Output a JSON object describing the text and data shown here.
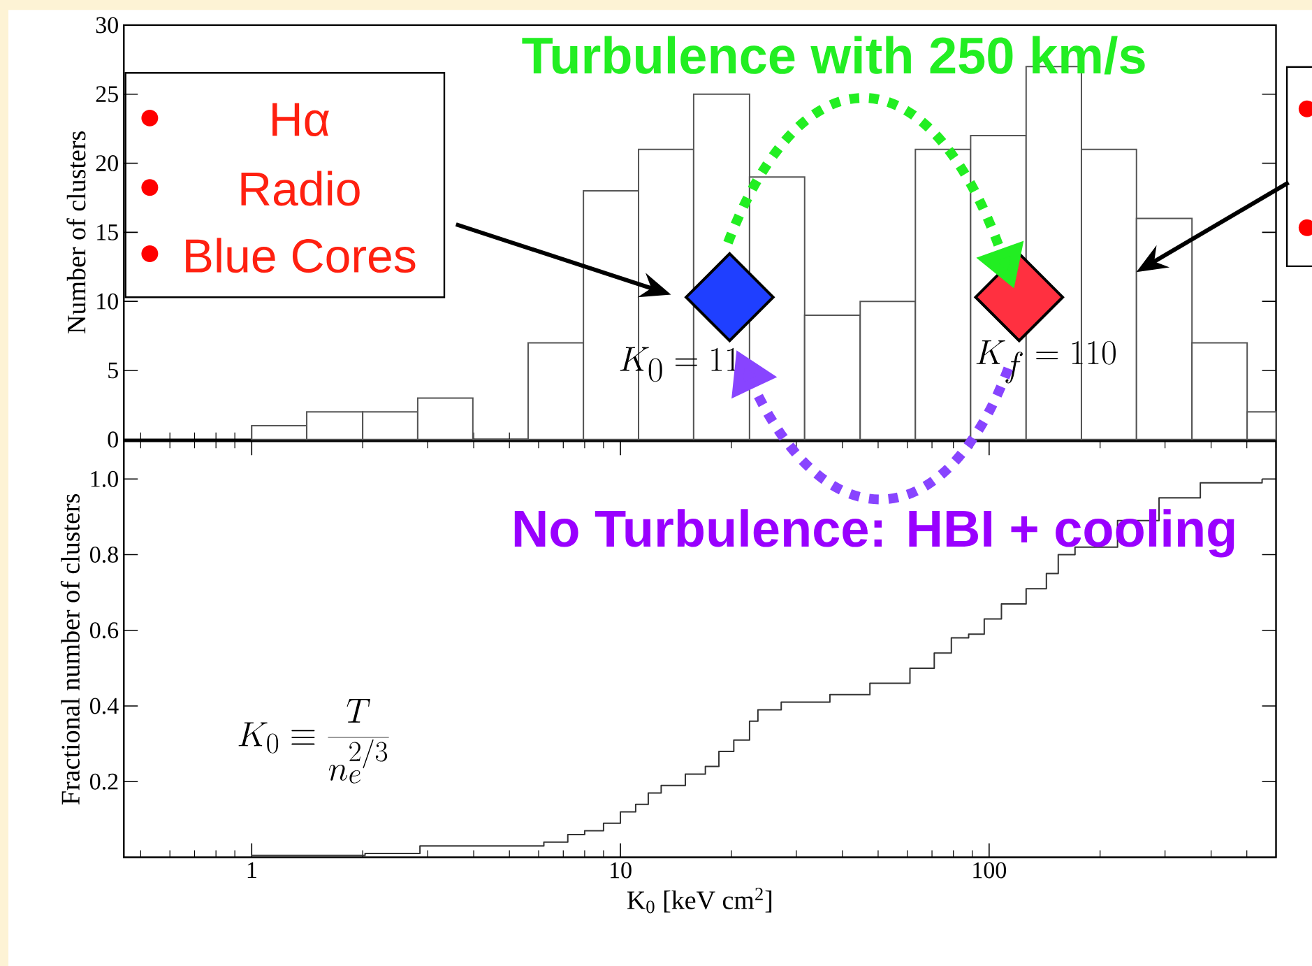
{
  "chart_data": [
    {
      "type": "histogram",
      "ylabel": "Number of clusters",
      "bins": [
        1,
        1.41,
        2,
        2.82,
        3.98,
        5.62,
        7.94,
        11.2,
        15.8,
        22.4,
        31.6,
        44.7,
        63.1,
        89.1,
        126,
        178,
        251,
        355,
        501,
        600
      ],
      "series": [
        {
          "type": "histogram",
          "color": "#555555",
          "values": [
            1,
            2,
            2,
            3,
            0,
            7,
            18,
            21,
            25,
            19,
            9,
            10,
            21,
            22,
            27,
            21,
            16,
            7,
            2
          ]
        }
      ],
      "xlim": [
        0.45,
        600
      ],
      "xticks": [
        1,
        10,
        100
      ],
      "log": "x",
      "ylim": [
        0,
        30
      ],
      "yticks": [
        0,
        5,
        10,
        15,
        20,
        25,
        30
      ],
      "tick_labels": "y",
      "annotations": [
        "Turbulence with 250 km/s",
        "Hα",
        "Radio",
        "Blue Cores",
        "K_0 = 11",
        "K_f = 110"
      ]
    },
    {
      "type": "step",
      "ylabel": "Fractional number of clusters",
      "xlabel": "K$_{0}$ [keV cm$^{2}$]",
      "color": "#333333",
      "x": [
        1,
        2.03,
        2.86,
        5.9,
        6.2,
        7.2,
        8,
        9,
        10,
        11,
        11.9,
        12.9,
        15,
        17,
        18.5,
        20.3,
        22.4,
        23.6,
        27.3,
        37,
        47.5,
        61,
        71,
        79,
        88,
        97,
        108,
        126,
        143,
        154,
        171,
        223,
        289,
        374,
        550
      ],
      "values": [
        0.005,
        0.01,
        0.03,
        0.03,
        0.04,
        0.06,
        0.07,
        0.09,
        0.12,
        0.14,
        0.17,
        0.19,
        0.22,
        0.24,
        0.28,
        0.31,
        0.36,
        0.39,
        0.41,
        0.43,
        0.46,
        0.5,
        0.54,
        0.58,
        0.59,
        0.63,
        0.67,
        0.71,
        0.75,
        0.8,
        0.82,
        0.89,
        0.95,
        0.99,
        1.0
      ],
      "xlim": [
        0.45,
        600
      ],
      "xticks": [
        1,
        10,
        100
      ],
      "log": "x",
      "ylim": [
        0,
        1.1
      ],
      "yticks": [
        0.2,
        0.4,
        0.6,
        0.8,
        {
          "value": 1,
          "label": "1.0"
        }
      ],
      "annotations": [
        "No Turbulence: HBI + cooling",
        "K_0 \\equiv \\frac{T}{n_e^{2/3}}"
      ]
    }
  ]
}
